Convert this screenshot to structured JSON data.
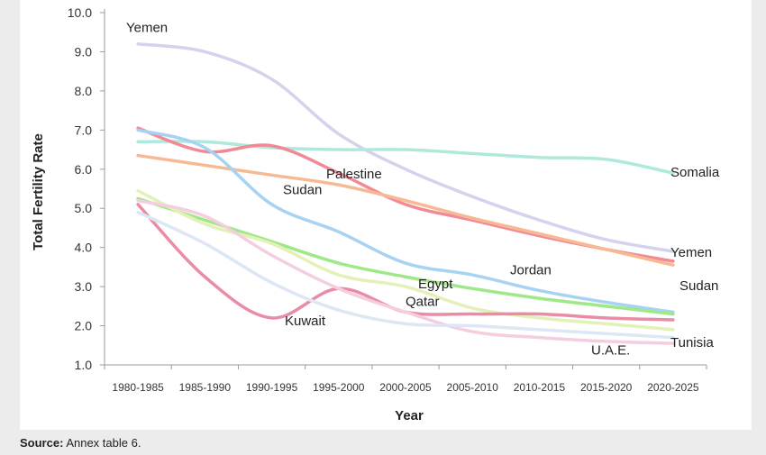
{
  "chart_data": {
    "type": "line",
    "title": "",
    "xlabel": "Year",
    "ylabel": "Total Fertility Rate",
    "ylim": [
      1.0,
      10.0
    ],
    "yticks": [
      "1.0",
      "2.0",
      "3.0",
      "4.0",
      "5.0",
      "6.0",
      "7.0",
      "8.0",
      "9.0",
      "10.0"
    ],
    "categories": [
      "1980-1985",
      "1985-1990",
      "1990-1995",
      "1995-2000",
      "2000-2005",
      "2005-2010",
      "2010-2015",
      "2015-2020",
      "2020-2025"
    ],
    "grid": false,
    "series": [
      {
        "name": "Yemen",
        "color": "#d5d2ee",
        "label_left": "Yemen",
        "label_right": "Yemen",
        "values": [
          9.2,
          9.0,
          8.3,
          6.9,
          6.0,
          5.3,
          4.7,
          4.2,
          3.9
        ]
      },
      {
        "name": "Somalia",
        "color": "#aee9dc",
        "label_right": "Somalia",
        "values": [
          6.7,
          6.7,
          6.55,
          6.5,
          6.5,
          6.4,
          6.3,
          6.25,
          5.9
        ]
      },
      {
        "name": "Palestine",
        "color": "#ef8a96",
        "label_mid": "Palestine",
        "values": [
          7.05,
          6.45,
          6.6,
          5.9,
          5.1,
          4.7,
          4.3,
          3.95,
          3.65
        ]
      },
      {
        "name": "Sudan",
        "color": "#f7b994",
        "label_right": "Sudan",
        "values": [
          6.35,
          6.1,
          5.85,
          5.6,
          5.2,
          4.75,
          4.35,
          3.95,
          3.55
        ]
      },
      {
        "name": "Sudan (mid label)",
        "color": "#a7d3f2",
        "label_mid": "Sudan",
        "label_mid2": "Jordan",
        "values": [
          7.0,
          6.55,
          5.1,
          4.4,
          3.6,
          3.3,
          2.9,
          2.6,
          2.35
        ]
      },
      {
        "name": "Egypt",
        "color": "#9fe888",
        "label_mid": "Egypt",
        "values": [
          5.25,
          4.7,
          4.15,
          3.6,
          3.25,
          2.95,
          2.7,
          2.5,
          2.3
        ]
      },
      {
        "name": "Qatar",
        "color": "#e3f1b8",
        "label_mid": "Qatar",
        "values": [
          5.45,
          4.6,
          4.1,
          3.3,
          3.0,
          2.45,
          2.2,
          2.05,
          1.9
        ]
      },
      {
        "name": "Kuwait",
        "color": "#e98da6",
        "label_mid": "Kuwait",
        "values": [
          5.1,
          3.25,
          2.2,
          2.95,
          2.35,
          2.3,
          2.3,
          2.2,
          2.15
        ]
      },
      {
        "name": "Tunisia",
        "color": "#f5cde0",
        "label_right": "Tunisia",
        "values": [
          5.2,
          4.8,
          3.8,
          2.95,
          2.35,
          1.85,
          1.7,
          1.6,
          1.55
        ]
      },
      {
        "name": "U.A.E.",
        "color": "#dde6f5",
        "label_mid": "U.A.E.",
        "values": [
          4.9,
          4.1,
          3.1,
          2.4,
          2.05,
          2.0,
          1.9,
          1.8,
          1.7
        ]
      }
    ],
    "labels": {
      "yemen_top": "Yemen",
      "yemen_right": "Yemen",
      "somalia": "Somalia",
      "palestine": "Palestine",
      "sudan_mid": "Sudan",
      "sudan_right": "Sudan",
      "jordan": "Jordan",
      "egypt": "Egypt",
      "qatar": "Qatar",
      "kuwait": "Kuwait",
      "uae": "U.A.E.",
      "tunisia": "Tunisia"
    }
  },
  "source": {
    "prefix": "Source:",
    "text": "Annex table 6."
  }
}
